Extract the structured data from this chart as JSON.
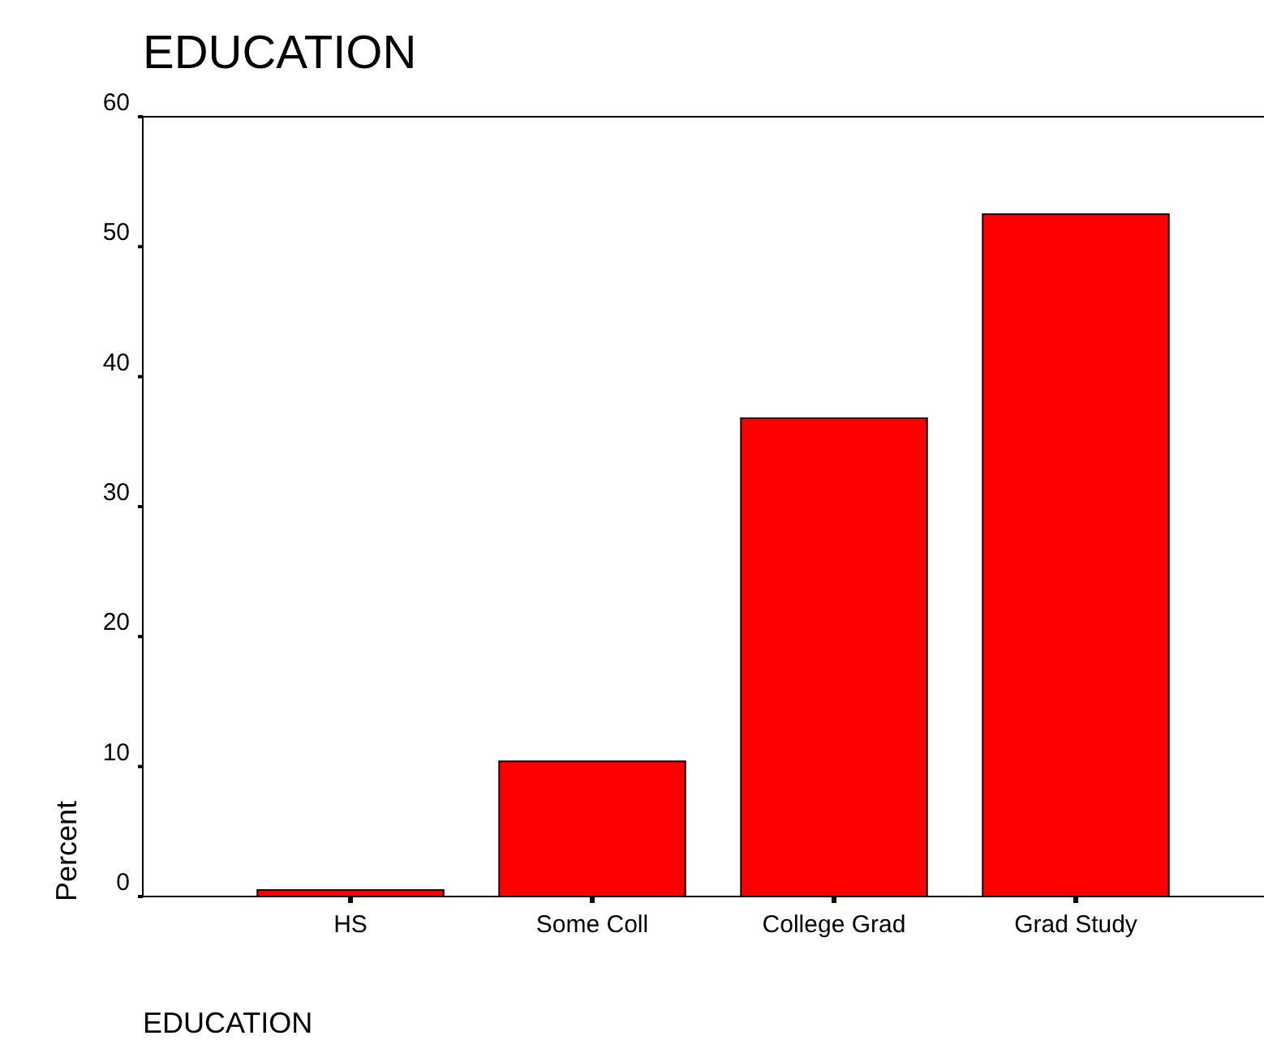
{
  "chart_data": {
    "type": "bar",
    "title": "EDUCATION",
    "xlabel": "EDUCATION",
    "ylabel": "Percent",
    "categories": [
      "HS",
      "Some Coll",
      "College Grad",
      "Grad Study"
    ],
    "values": [
      0.5,
      10.4,
      36.8,
      52.5
    ],
    "color": "#ff0000",
    "ylim": [
      0,
      60
    ],
    "yticks": [
      0,
      10,
      20,
      30,
      40,
      50,
      60
    ],
    "grid": false
  }
}
